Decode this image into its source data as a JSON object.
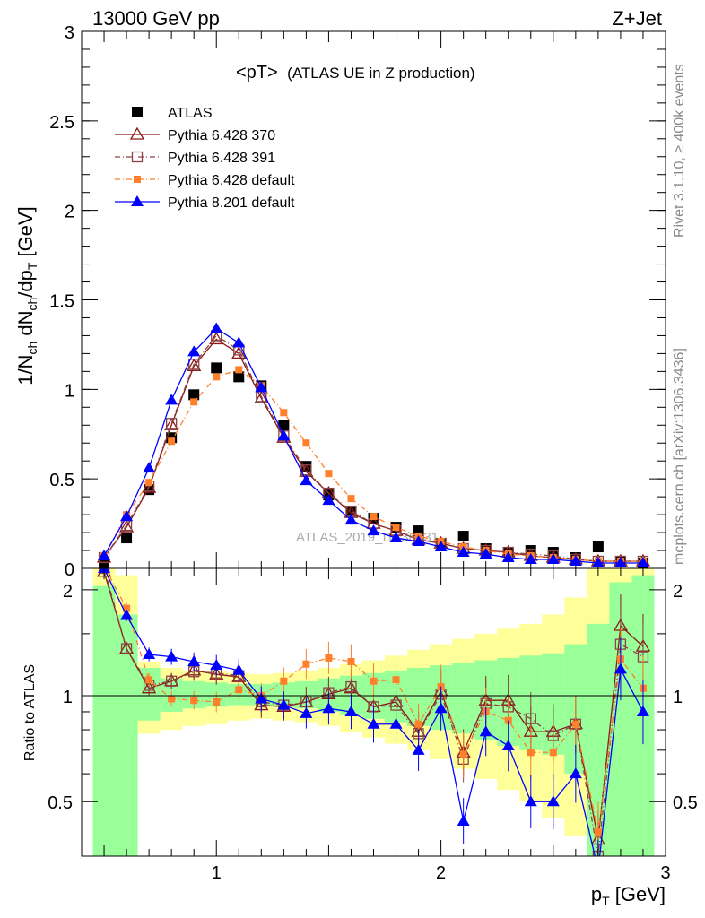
{
  "header": {
    "energy_label": "13000 GeV pp",
    "process_label": "Z+Jet"
  },
  "side_labels": {
    "rivet": "Rivet 3.1.10, ≥ 400k events",
    "mcplots": "mcplots.cern.ch [arXiv:1306.3436]"
  },
  "plot_title": {
    "main": "<pT>",
    "sub": "(ATLAS UE in Z production)"
  },
  "watermark": "ATLAS_2019_I1736531",
  "axes": {
    "top_ylabel": "1/N_ch dN_ch/dp_T [GeV]",
    "bottom_ylabel": "Ratio to ATLAS",
    "xlabel": "p_T [GeV]",
    "xlim": [
      0.4,
      3.0
    ],
    "top_ylim": [
      0,
      3.0
    ],
    "bottom_ylim": [
      0.35,
      2.3
    ],
    "top_yticks": [
      "0",
      "0.5",
      "1",
      "1.5",
      "2",
      "2.5",
      "3"
    ],
    "bottom_yticks": [
      "0.5",
      "1",
      "2"
    ],
    "xticks": [
      "1",
      "2",
      "3"
    ]
  },
  "chart_data": {
    "type": "line",
    "x": [
      0.5,
      0.6,
      0.7,
      0.8,
      0.9,
      1.0,
      1.1,
      1.2,
      1.3,
      1.4,
      1.5,
      1.6,
      1.7,
      1.8,
      1.9,
      2.0,
      2.1,
      2.2,
      2.3,
      2.4,
      2.5,
      2.6,
      2.7,
      2.8,
      2.9
    ],
    "series": [
      {
        "name": "ATLAS",
        "color": "#000000",
        "marker": "filled-square",
        "values": [
          0.03,
          0.17,
          0.44,
          0.73,
          0.97,
          1.12,
          1.07,
          1.02,
          0.8,
          0.57,
          0.41,
          0.32,
          0.28,
          0.23,
          0.21,
          0.14,
          0.18,
          0.11,
          0.09,
          0.1,
          0.09,
          0.06,
          0.12,
          0.04,
          0.03
        ],
        "ratio": [
          1,
          1,
          1,
          1,
          1,
          1,
          1,
          1,
          1,
          1,
          1,
          1,
          1,
          1,
          1,
          1,
          1,
          1,
          1,
          1,
          1,
          1,
          1,
          1,
          1
        ]
      },
      {
        "name": "Pythia 6.428 370",
        "color": "#8b1a1a",
        "marker": "open-triangle",
        "values": [
          0.06,
          0.23,
          0.45,
          0.8,
          1.13,
          1.28,
          1.2,
          0.95,
          0.73,
          0.54,
          0.42,
          0.31,
          0.25,
          0.21,
          0.16,
          0.14,
          0.11,
          0.1,
          0.09,
          0.07,
          0.06,
          0.05,
          0.04,
          0.04,
          0.04
        ],
        "ratio": [
          2.25,
          1.36,
          1.05,
          1.1,
          1.18,
          1.15,
          1.13,
          0.94,
          0.93,
          0.96,
          1.01,
          1.05,
          0.93,
          0.96,
          0.79,
          1.03,
          0.69,
          0.97,
          0.97,
          0.79,
          0.79,
          0.83,
          0.39,
          1.58,
          1.38
        ]
      },
      {
        "name": "Pythia 6.428 391",
        "color": "#8b4444",
        "marker": "open-square",
        "values": [
          0.06,
          0.24,
          0.46,
          0.81,
          1.14,
          1.3,
          1.22,
          0.96,
          0.74,
          0.55,
          0.42,
          0.32,
          0.25,
          0.21,
          0.16,
          0.14,
          0.11,
          0.1,
          0.09,
          0.08,
          0.07,
          0.05,
          0.04,
          0.04,
          0.04
        ],
        "ratio": [
          2.3,
          1.36,
          1.07,
          1.1,
          1.17,
          1.16,
          1.14,
          0.96,
          0.94,
          0.96,
          1.02,
          1.06,
          0.93,
          0.94,
          0.78,
          1.01,
          0.66,
          0.95,
          0.93,
          0.86,
          0.77,
          0.83,
          0.35,
          1.4,
          1.29
        ]
      },
      {
        "name": "Pythia 6.428 default",
        "color": "#ff7f2a",
        "marker": "filled-small-square",
        "values": [
          0.07,
          0.3,
          0.48,
          0.71,
          0.93,
          1.07,
          1.11,
          1.02,
          0.87,
          0.7,
          0.53,
          0.39,
          0.29,
          0.23,
          0.18,
          0.15,
          0.12,
          0.1,
          0.08,
          0.07,
          0.06,
          0.05,
          0.04,
          0.04,
          0.04
        ],
        "ratio": [
          2.34,
          1.77,
          1.11,
          0.98,
          0.97,
          0.96,
          1.04,
          1.0,
          1.1,
          1.23,
          1.28,
          1.25,
          1.1,
          1.11,
          0.83,
          1.06,
          0.68,
          0.9,
          0.85,
          0.69,
          0.69,
          0.83,
          0.41,
          1.27,
          1.05
        ]
      },
      {
        "name": "Pythia 8.201 default",
        "color": "#0000ff",
        "marker": "filled-triangle",
        "values": [
          0.07,
          0.29,
          0.56,
          0.94,
          1.21,
          1.34,
          1.26,
          1.01,
          0.74,
          0.49,
          0.38,
          0.27,
          0.21,
          0.17,
          0.15,
          0.12,
          0.09,
          0.08,
          0.06,
          0.05,
          0.05,
          0.04,
          0.03,
          0.03,
          0.03
        ],
        "ratio": [
          2.3,
          1.69,
          1.31,
          1.29,
          1.25,
          1.22,
          1.18,
          0.98,
          0.94,
          0.89,
          0.92,
          0.9,
          0.83,
          0.83,
          0.7,
          0.92,
          0.44,
          0.79,
          0.72,
          0.5,
          0.5,
          0.6,
          0.32,
          1.19,
          0.9
        ]
      }
    ],
    "bands": {
      "x_edges": [
        0.45,
        0.55,
        0.65,
        0.75,
        0.85,
        0.95,
        1.05,
        1.15,
        1.25,
        1.35,
        1.45,
        1.55,
        1.65,
        1.75,
        1.85,
        1.95,
        2.05,
        2.15,
        2.25,
        2.35,
        2.45,
        2.55,
        2.65,
        2.75,
        2.85,
        2.95
      ],
      "inner_green": [
        [
          0.3,
          2.05
        ],
        [
          0.3,
          1.7
        ],
        [
          0.85,
          1.2
        ],
        [
          0.9,
          1.12
        ],
        [
          0.92,
          1.1
        ],
        [
          0.93,
          1.09
        ],
        [
          0.94,
          1.08
        ],
        [
          0.94,
          1.08
        ],
        [
          0.93,
          1.09
        ],
        [
          0.92,
          1.1
        ],
        [
          0.9,
          1.12
        ],
        [
          0.88,
          1.14
        ],
        [
          0.86,
          1.16
        ],
        [
          0.84,
          1.18
        ],
        [
          0.82,
          1.2
        ],
        [
          0.8,
          1.22
        ],
        [
          0.78,
          1.24
        ],
        [
          0.75,
          1.26
        ],
        [
          0.72,
          1.28
        ],
        [
          0.7,
          1.3
        ],
        [
          0.68,
          1.32
        ],
        [
          0.6,
          1.4
        ],
        [
          0.3,
          1.6
        ],
        [
          0.3,
          2.1
        ],
        [
          0.3,
          2.2
        ]
      ],
      "outer_yellow": [
        [
          0.3,
          2.4
        ],
        [
          0.6,
          2.2
        ],
        [
          0.78,
          1.25
        ],
        [
          0.8,
          1.2
        ],
        [
          0.82,
          1.18
        ],
        [
          0.83,
          1.17
        ],
        [
          0.85,
          1.16
        ],
        [
          0.86,
          1.15
        ],
        [
          0.85,
          1.16
        ],
        [
          0.84,
          1.18
        ],
        [
          0.82,
          1.2
        ],
        [
          0.79,
          1.23
        ],
        [
          0.76,
          1.26
        ],
        [
          0.73,
          1.3
        ],
        [
          0.7,
          1.35
        ],
        [
          0.66,
          1.4
        ],
        [
          0.62,
          1.45
        ],
        [
          0.58,
          1.5
        ],
        [
          0.54,
          1.55
        ],
        [
          0.5,
          1.6
        ],
        [
          0.45,
          1.7
        ],
        [
          0.4,
          1.9
        ],
        [
          0.3,
          2.3
        ],
        [
          0.3,
          2.4
        ],
        [
          0.3,
          2.4
        ]
      ]
    }
  }
}
